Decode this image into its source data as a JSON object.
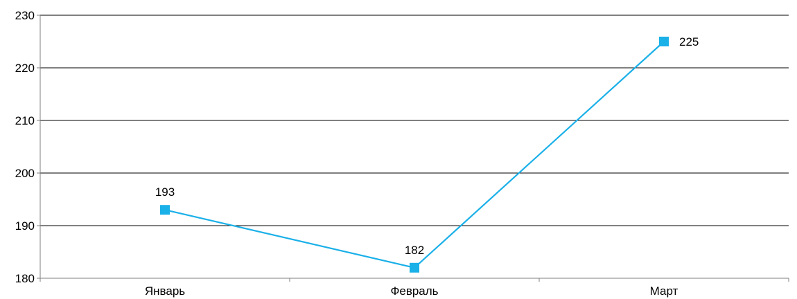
{
  "chart_data": {
    "type": "line",
    "title": "",
    "xlabel": "",
    "ylabel": "",
    "categories": [
      "Январь",
      "Февраль",
      "Март"
    ],
    "series": [
      {
        "values": [
          193,
          182,
          225
        ],
        "color": "#1ab0e8"
      }
    ],
    "ylim": [
      180,
      230
    ],
    "yticks": [
      180,
      190,
      200,
      210,
      220,
      230
    ],
    "data_labels": [
      "193",
      "182",
      "225"
    ],
    "grid": true,
    "legend": "none",
    "colors": {
      "series": "#1ab0e8",
      "grid": "#000000",
      "axis": "#7f7f7f",
      "text": "#000000"
    }
  }
}
